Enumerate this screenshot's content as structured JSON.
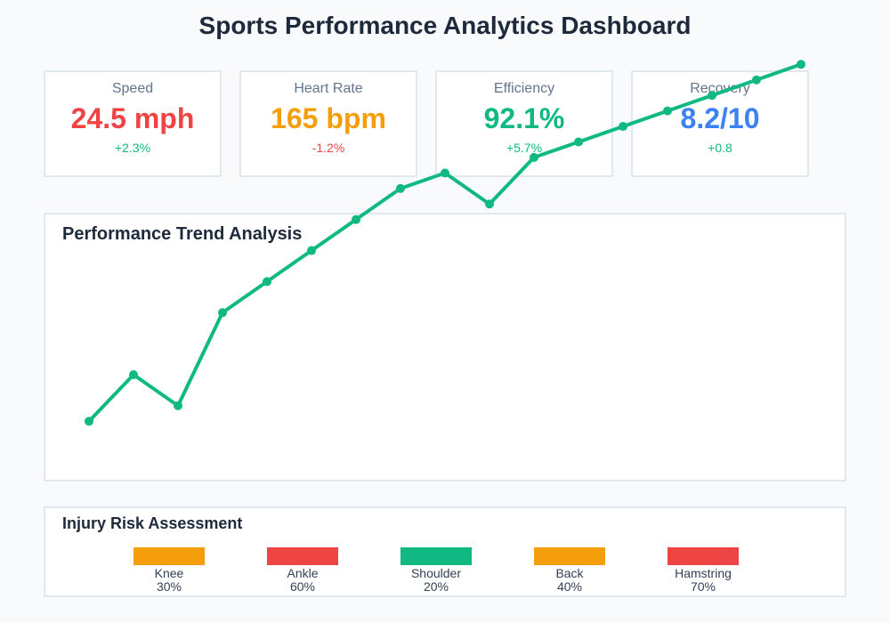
{
  "dashboard": {
    "title": "Sports Performance Analytics Dashboard"
  },
  "metrics": [
    {
      "label": "Speed",
      "value": "24.5 mph",
      "change": "+2.3%",
      "value_color": "#ef4444",
      "change_color": "#10b981"
    },
    {
      "label": "Heart Rate",
      "value": "165 bpm",
      "change": "-1.2%",
      "value_color": "#f59e0b",
      "change_color": "#ef4444"
    },
    {
      "label": "Efficiency",
      "value": "92.1%",
      "change": "+5.7%",
      "value_color": "#10b981",
      "change_color": "#10b981"
    },
    {
      "label": "Recovery",
      "value": "8.2/10",
      "change": "+0.8",
      "value_color": "#3b82f6",
      "change_color": "#10b981"
    }
  ],
  "chart_data": {
    "type": "line",
    "title": "Performance Trend Analysis",
    "xlabel": "",
    "ylabel": "",
    "x": [
      1,
      2,
      3,
      4,
      5,
      6,
      7,
      8,
      9,
      10,
      11,
      12,
      13,
      14,
      15,
      16,
      17
    ],
    "series": [
      {
        "name": "Performance",
        "values": [
          23,
          26,
          24,
          30,
          32,
          34,
          36,
          38,
          39,
          37,
          40,
          41,
          42,
          43,
          44,
          45,
          46
        ]
      }
    ],
    "ylim": [
      10,
      49
    ],
    "grid": false,
    "line_color": "#10b981"
  },
  "injury_risk": {
    "title": "Injury Risk Assessment",
    "items": [
      {
        "name": "Knee",
        "risk": "30%",
        "color": "#f59e0b"
      },
      {
        "name": "Ankle",
        "risk": "60%",
        "color": "#ef4444"
      },
      {
        "name": "Shoulder",
        "risk": "20%",
        "color": "#10b981"
      },
      {
        "name": "Back",
        "risk": "40%",
        "color": "#f59e0b"
      },
      {
        "name": "Hamstring",
        "risk": "70%",
        "color": "#ef4444"
      }
    ]
  }
}
